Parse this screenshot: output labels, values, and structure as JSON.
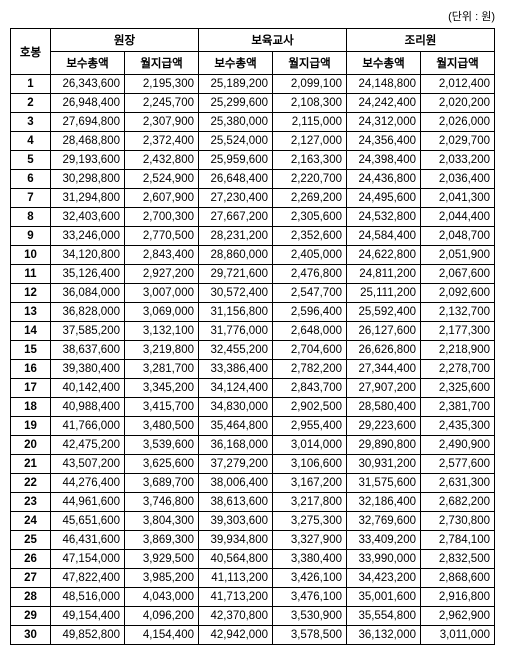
{
  "unit_label": "(단위 : 원)",
  "headers": {
    "row_label": "호봉",
    "groups": [
      "원장",
      "보육교사",
      "조리원"
    ],
    "sub": [
      "보수총액",
      "월지급액"
    ]
  },
  "rows": [
    {
      "n": "1",
      "c": [
        "26,343,600",
        "2,195,300",
        "25,189,200",
        "2,099,100",
        "24,148,800",
        "2,012,400"
      ]
    },
    {
      "n": "2",
      "c": [
        "26,948,400",
        "2,245,700",
        "25,299,600",
        "2,108,300",
        "24,242,400",
        "2,020,200"
      ]
    },
    {
      "n": "3",
      "c": [
        "27,694,800",
        "2,307,900",
        "25,380,000",
        "2,115,000",
        "24,312,000",
        "2,026,000"
      ]
    },
    {
      "n": "4",
      "c": [
        "28,468,800",
        "2,372,400",
        "25,524,000",
        "2,127,000",
        "24,356,400",
        "2,029,700"
      ]
    },
    {
      "n": "5",
      "c": [
        "29,193,600",
        "2,432,800",
        "25,959,600",
        "2,163,300",
        "24,398,400",
        "2,033,200"
      ]
    },
    {
      "n": "6",
      "c": [
        "30,298,800",
        "2,524,900",
        "26,648,400",
        "2,220,700",
        "24,436,800",
        "2,036,400"
      ]
    },
    {
      "n": "7",
      "c": [
        "31,294,800",
        "2,607,900",
        "27,230,400",
        "2,269,200",
        "24,495,600",
        "2,041,300"
      ]
    },
    {
      "n": "8",
      "c": [
        "32,403,600",
        "2,700,300",
        "27,667,200",
        "2,305,600",
        "24,532,800",
        "2,044,400"
      ]
    },
    {
      "n": "9",
      "c": [
        "33,246,000",
        "2,770,500",
        "28,231,200",
        "2,352,600",
        "24,584,400",
        "2,048,700"
      ]
    },
    {
      "n": "10",
      "c": [
        "34,120,800",
        "2,843,400",
        "28,860,000",
        "2,405,000",
        "24,622,800",
        "2,051,900"
      ]
    },
    {
      "n": "11",
      "c": [
        "35,126,400",
        "2,927,200",
        "29,721,600",
        "2,476,800",
        "24,811,200",
        "2,067,600"
      ]
    },
    {
      "n": "12",
      "c": [
        "36,084,000",
        "3,007,000",
        "30,572,400",
        "2,547,700",
        "25,111,200",
        "2,092,600"
      ]
    },
    {
      "n": "13",
      "c": [
        "36,828,000",
        "3,069,000",
        "31,156,800",
        "2,596,400",
        "25,592,400",
        "2,132,700"
      ]
    },
    {
      "n": "14",
      "c": [
        "37,585,200",
        "3,132,100",
        "31,776,000",
        "2,648,000",
        "26,127,600",
        "2,177,300"
      ]
    },
    {
      "n": "15",
      "c": [
        "38,637,600",
        "3,219,800",
        "32,455,200",
        "2,704,600",
        "26,626,800",
        "2,218,900"
      ]
    },
    {
      "n": "16",
      "c": [
        "39,380,400",
        "3,281,700",
        "33,386,400",
        "2,782,200",
        "27,344,400",
        "2,278,700"
      ]
    },
    {
      "n": "17",
      "c": [
        "40,142,400",
        "3,345,200",
        "34,124,400",
        "2,843,700",
        "27,907,200",
        "2,325,600"
      ]
    },
    {
      "n": "18",
      "c": [
        "40,988,400",
        "3,415,700",
        "34,830,000",
        "2,902,500",
        "28,580,400",
        "2,381,700"
      ]
    },
    {
      "n": "19",
      "c": [
        "41,766,000",
        "3,480,500",
        "35,464,800",
        "2,955,400",
        "29,223,600",
        "2,435,300"
      ]
    },
    {
      "n": "20",
      "c": [
        "42,475,200",
        "3,539,600",
        "36,168,000",
        "3,014,000",
        "29,890,800",
        "2,490,900"
      ]
    },
    {
      "n": "21",
      "c": [
        "43,507,200",
        "3,625,600",
        "37,279,200",
        "3,106,600",
        "30,931,200",
        "2,577,600"
      ]
    },
    {
      "n": "22",
      "c": [
        "44,276,400",
        "3,689,700",
        "38,006,400",
        "3,167,200",
        "31,575,600",
        "2,631,300"
      ]
    },
    {
      "n": "23",
      "c": [
        "44,961,600",
        "3,746,800",
        "38,613,600",
        "3,217,800",
        "32,186,400",
        "2,682,200"
      ]
    },
    {
      "n": "24",
      "c": [
        "45,651,600",
        "3,804,300",
        "39,303,600",
        "3,275,300",
        "32,769,600",
        "2,730,800"
      ]
    },
    {
      "n": "25",
      "c": [
        "46,431,600",
        "3,869,300",
        "39,934,800",
        "3,327,900",
        "33,409,200",
        "2,784,100"
      ]
    },
    {
      "n": "26",
      "c": [
        "47,154,000",
        "3,929,500",
        "40,564,800",
        "3,380,400",
        "33,990,000",
        "2,832,500"
      ]
    },
    {
      "n": "27",
      "c": [
        "47,822,400",
        "3,985,200",
        "41,113,200",
        "3,426,100",
        "34,423,200",
        "2,868,600"
      ]
    },
    {
      "n": "28",
      "c": [
        "48,516,000",
        "4,043,000",
        "41,713,200",
        "3,476,100",
        "35,001,600",
        "2,916,800"
      ]
    },
    {
      "n": "29",
      "c": [
        "49,154,400",
        "4,096,200",
        "42,370,800",
        "3,530,900",
        "35,554,800",
        "2,962,900"
      ]
    },
    {
      "n": "30",
      "c": [
        "49,852,800",
        "4,154,400",
        "42,942,000",
        "3,578,500",
        "36,132,000",
        "3,011,000"
      ]
    }
  ]
}
